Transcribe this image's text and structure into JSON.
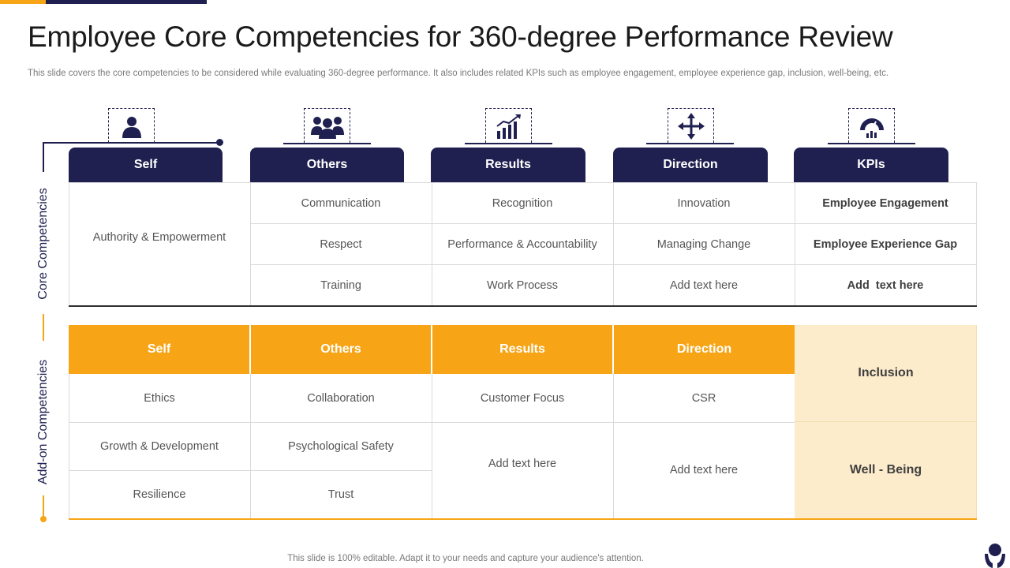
{
  "title": "Employee Core Competencies for 360-degree Performance Review",
  "subtitle": "This slide covers the core competencies to be considered while evaluating 360-degree performance. It also includes related KPIs such as employee engagement, employee experience gap, inclusion, well-being, etc.",
  "side_labels": {
    "core": "Core Competencies",
    "addon": "Add-on Competencies"
  },
  "icons": [
    "person-icon",
    "group-icon",
    "bar-chart-growth-icon",
    "direction-arrows-icon",
    "gauge-icon"
  ],
  "core": {
    "headers": [
      "Self",
      "Others",
      "Results",
      "Direction",
      "KPIs"
    ],
    "self": "Authority & Empowerment",
    "others": [
      "Communication",
      "Respect",
      "Training"
    ],
    "results": [
      "Recognition",
      "Performance & Accountability",
      "Work Process"
    ],
    "direction": [
      "Innovation",
      "Managing Change",
      "Add text here"
    ],
    "kpis": [
      "Employee Engagement",
      "Employee Experience Gap",
      "Add  text here"
    ]
  },
  "addon": {
    "headers": [
      "Self",
      "Others",
      "Results",
      "Direction"
    ],
    "self": [
      "Ethics",
      "Growth & Development",
      "Resilience"
    ],
    "others": [
      "Collaboration",
      "Psychological Safety",
      "Trust"
    ],
    "results": [
      "Customer Focus",
      "Add text here"
    ],
    "direction": [
      "CSR",
      "Add text here"
    ],
    "kpis": [
      "Inclusion",
      "Well - Being"
    ]
  },
  "footer": "This slide is 100% editable. Adapt it to your needs and capture your audience's attention.",
  "colors": {
    "navy": "#1f2050",
    "orange": "#f7a516",
    "cream": "#fdeccc"
  }
}
